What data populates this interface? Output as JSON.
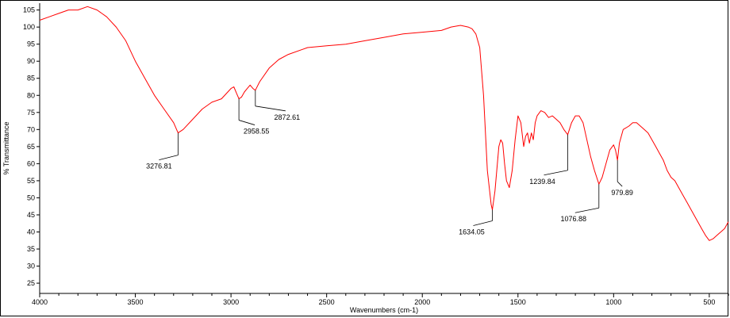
{
  "chart_data": {
    "type": "line",
    "xlabel": "Wavenumbers (cm-1)",
    "ylabel": "% Transmittance",
    "xlim": [
      4000,
      400
    ],
    "ylim": [
      22,
      107
    ],
    "x_reversed": true,
    "grid": false,
    "xticks": [
      4000,
      3500,
      3000,
      2500,
      2000,
      1500,
      1000,
      500
    ],
    "yticks": [
      25,
      30,
      35,
      40,
      45,
      50,
      55,
      60,
      65,
      70,
      75,
      80,
      85,
      90,
      95,
      100,
      105
    ],
    "series": [
      {
        "color": "#ff0000",
        "x": [
          4000,
          3950,
          3900,
          3850,
          3800,
          3750,
          3700,
          3650,
          3600,
          3550,
          3500,
          3450,
          3400,
          3350,
          3300,
          3276.81,
          3250,
          3200,
          3150,
          3100,
          3050,
          3000,
          2985,
          2970,
          2958.55,
          2945,
          2930,
          2915,
          2900,
          2885,
          2872.61,
          2850,
          2800,
          2750,
          2700,
          2600,
          2500,
          2400,
          2300,
          2200,
          2100,
          2000,
          1900,
          1850,
          1800,
          1760,
          1740,
          1720,
          1700,
          1680,
          1660,
          1640,
          1634.05,
          1620,
          1600,
          1590,
          1580,
          1570,
          1560,
          1545,
          1530,
          1515,
          1500,
          1485,
          1470,
          1460,
          1450,
          1440,
          1430,
          1420,
          1410,
          1400,
          1380,
          1360,
          1340,
          1320,
          1300,
          1280,
          1260,
          1239.84,
          1220,
          1200,
          1180,
          1160,
          1140,
          1120,
          1100,
          1076.88,
          1060,
          1040,
          1020,
          1000,
          990,
          979.89,
          970,
          950,
          920,
          900,
          880,
          860,
          840,
          820,
          800,
          780,
          760,
          740,
          720,
          700,
          680,
          660,
          640,
          620,
          600,
          580,
          560,
          540,
          520,
          500,
          480,
          460,
          440,
          420,
          410,
          400
        ],
        "y": [
          102,
          103,
          104,
          105,
          105,
          106,
          105,
          103,
          100,
          96,
          90,
          85,
          80,
          76,
          72,
          69,
          70,
          73,
          76,
          78,
          79,
          82,
          82.5,
          80.5,
          79,
          79.5,
          81,
          82,
          83,
          82,
          81.5,
          84,
          88,
          90.5,
          92,
          94,
          94.5,
          95,
          96,
          97,
          98,
          98.5,
          99,
          100,
          100.5,
          100,
          99.5,
          98,
          94,
          80,
          58,
          48,
          46.5,
          52,
          65,
          67,
          66,
          60,
          55,
          53,
          58,
          67,
          74,
          72,
          65,
          68,
          69,
          66,
          69,
          67,
          72,
          74,
          75.5,
          75,
          73.5,
          74,
          73,
          72,
          70,
          68.5,
          72,
          74,
          74,
          72,
          67,
          62,
          58,
          54,
          56,
          60,
          64,
          65.5,
          64,
          61,
          66,
          70,
          71,
          72,
          72,
          71,
          70,
          69,
          67,
          65,
          63,
          61,
          58,
          56,
          55,
          53,
          51,
          49,
          47,
          45,
          43,
          41,
          39,
          37.5,
          38,
          39,
          40,
          41,
          42,
          43
        ]
      }
    ],
    "annotations": [
      {
        "x": 3276.81,
        "label": "3276.81"
      },
      {
        "x": 2958.55,
        "label": "2958.55"
      },
      {
        "x": 2872.61,
        "label": "2872.61"
      },
      {
        "x": 1634.05,
        "label": "1634.05"
      },
      {
        "x": 1239.84,
        "label": "1239.84"
      },
      {
        "x": 1076.88,
        "label": "1076.88"
      },
      {
        "x": 979.89,
        "label": "979.89"
      }
    ]
  }
}
